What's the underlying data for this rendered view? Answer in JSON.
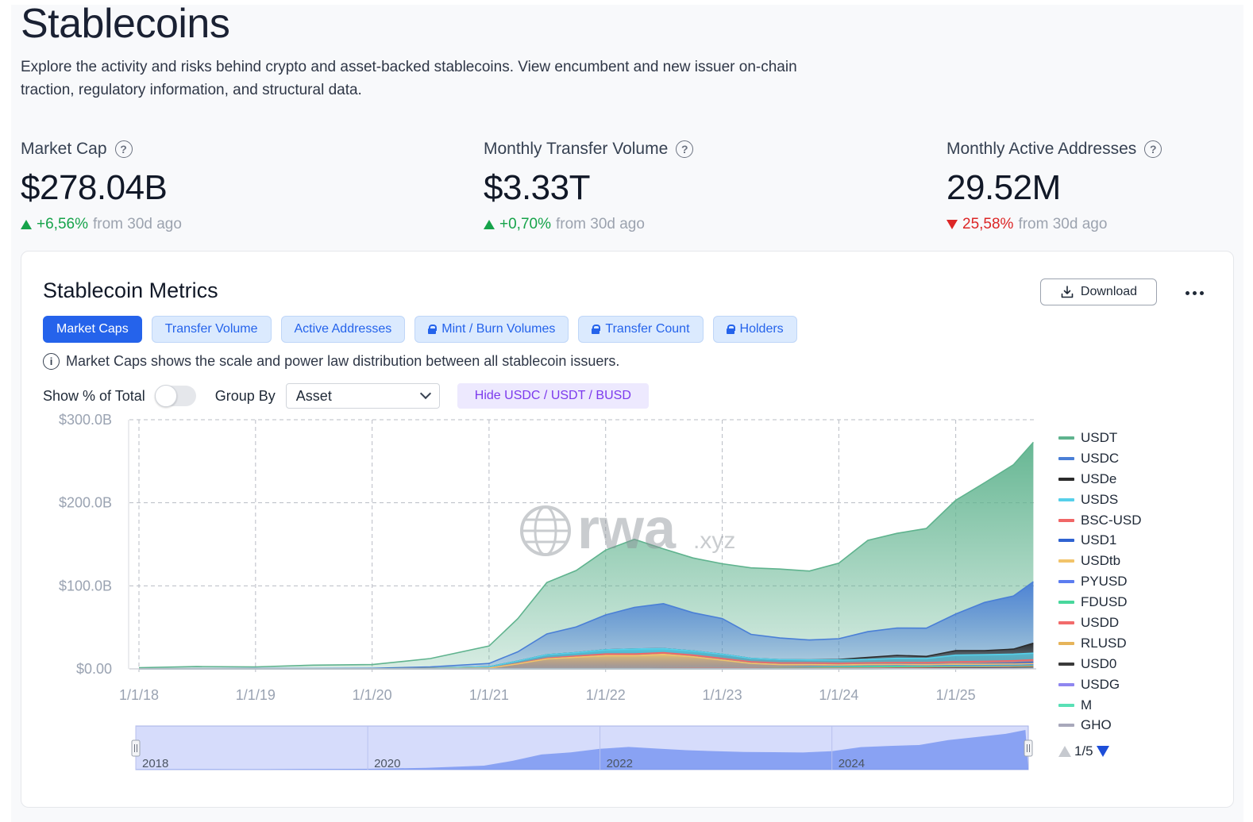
{
  "page": {
    "title": "Stablecoins",
    "description": "Explore the activity and risks behind crypto and asset-backed stablecoins. View encumbent and new issuer on-chain traction, regulatory information, and structural data."
  },
  "stats": [
    {
      "label": "Market Cap",
      "value": "$278.04B",
      "delta": "+6,56%",
      "direction": "up",
      "suffix": "from 30d ago"
    },
    {
      "label": "Monthly Transfer Volume",
      "value": "$3.33T",
      "delta": "+0,70%",
      "direction": "up",
      "suffix": "from 30d ago"
    },
    {
      "label": "Monthly Active Addresses",
      "value": "29.52M",
      "delta": "25,58%",
      "direction": "down",
      "suffix": "from 30d ago"
    }
  ],
  "metrics_card": {
    "title": "Stablecoin Metrics",
    "download_label": "Download",
    "tabs": [
      {
        "label": "Market Caps",
        "active": true,
        "locked": false
      },
      {
        "label": "Transfer Volume",
        "active": false,
        "locked": false
      },
      {
        "label": "Active Addresses",
        "active": false,
        "locked": false
      },
      {
        "label": "Mint / Burn Volumes",
        "active": false,
        "locked": true
      },
      {
        "label": "Transfer Count",
        "active": false,
        "locked": true
      },
      {
        "label": "Holders",
        "active": false,
        "locked": true
      }
    ],
    "info_text": "Market Caps shows the scale and power law distribution between all stablecoin issuers.",
    "show_pct_label": "Show % of Total",
    "show_pct_on": false,
    "group_by_label": "Group By",
    "group_by_value": "Asset",
    "hide_button_label": "Hide USDC / USDT / BUSD",
    "watermark": {
      "brand": "rwa",
      "suffix": ".xyz"
    },
    "pager": "1/5"
  },
  "colors": {
    "accent": "#2563eb",
    "positive": "#16a34a",
    "negative": "#dc2626"
  },
  "chart_data": {
    "type": "area",
    "stacked": true,
    "x_dates": [
      "2018-01-01",
      "2018-07-01",
      "2019-01-01",
      "2019-07-01",
      "2020-01-01",
      "2020-07-01",
      "2021-01-01",
      "2021-04-01",
      "2021-07-01",
      "2021-10-01",
      "2022-01-01",
      "2022-04-01",
      "2022-07-01",
      "2022-10-01",
      "2023-01-01",
      "2023-04-01",
      "2023-07-01",
      "2023-10-01",
      "2024-01-01",
      "2024-04-01",
      "2024-07-01",
      "2024-10-01",
      "2025-01-01",
      "2025-04-01",
      "2025-07-01",
      "2025-09-01"
    ],
    "x_ticks": [
      "1/1/18",
      "1/1/19",
      "1/1/20",
      "1/1/21",
      "1/1/22",
      "1/1/23",
      "1/1/24",
      "1/1/25"
    ],
    "y_ticks": [
      "$0.00",
      "$100.0B",
      "$200.0B",
      "$300.0B"
    ],
    "ylim": [
      0,
      300
    ],
    "y_unit": "B USD",
    "grid": true,
    "legend_position": "right",
    "series": [
      {
        "name": "USDT",
        "color": "#5fb38e",
        "values": [
          1.2,
          2.5,
          2,
          4,
          4.5,
          10,
          21,
          40,
          62,
          68,
          78,
          82,
          66,
          66,
          66,
          80,
          83,
          83,
          91,
          110,
          114,
          120,
          137,
          144,
          158,
          168
        ]
      },
      {
        "name": "USDC",
        "color": "#4a7fd6",
        "values": [
          0.2,
          0.3,
          0.4,
          0.5,
          0.6,
          1.5,
          4,
          11,
          25,
          31,
          42,
          50,
          54,
          46,
          43,
          29,
          26,
          24,
          25,
          31,
          33,
          34,
          44,
          58,
          64,
          74
        ]
      },
      {
        "name": "USDe",
        "color": "#2b2b2b",
        "values": [
          0,
          0,
          0,
          0,
          0,
          0,
          0,
          0,
          0,
          0,
          0,
          0,
          0,
          0,
          0,
          0,
          0,
          0,
          0.5,
          2.5,
          3.5,
          2.5,
          5.5,
          5,
          6,
          12
        ]
      },
      {
        "name": "USDS",
        "color": "#56d0ea",
        "values": [
          0,
          0,
          0,
          0,
          0.1,
          0.4,
          1.5,
          3,
          4,
          4,
          5,
          6,
          5,
          5,
          5,
          4,
          4,
          3.5,
          4,
          4,
          5,
          5,
          8,
          8,
          8,
          8
        ]
      },
      {
        "name": "BSC-USD",
        "color": "#f06767",
        "values": [
          0,
          0,
          0,
          0,
          0,
          0,
          0,
          0.5,
          1,
          1.5,
          2,
          2,
          2,
          2,
          2,
          2,
          2,
          2,
          2,
          2,
          2.5,
          2.5,
          3,
          3,
          3,
          3
        ]
      },
      {
        "name": "USD1",
        "color": "#2f63d1",
        "values": [
          0,
          0,
          0,
          0,
          0,
          0,
          0,
          0,
          0,
          0,
          0,
          0,
          0,
          0,
          0,
          0,
          0,
          0,
          0,
          0,
          0,
          0,
          0,
          0.5,
          1,
          1.5
        ]
      },
      {
        "name": "USDtb",
        "color": "#f2c46a",
        "values": [
          0,
          0,
          0,
          0,
          0,
          0.5,
          1,
          6,
          12,
          14,
          16,
          16,
          17,
          14,
          10,
          6,
          4,
          3,
          2,
          2,
          1.5,
          1.5,
          1.5,
          1.5,
          1.5,
          1.5
        ]
      },
      {
        "name": "PYUSD",
        "color": "#5c7df0",
        "values": [
          0,
          0,
          0,
          0,
          0,
          0,
          0,
          0,
          0,
          0,
          0,
          0,
          0,
          0,
          0,
          0,
          0,
          0.5,
          0.5,
          0.5,
          0.6,
          0.7,
          0.8,
          0.8,
          0.9,
          1
        ]
      },
      {
        "name": "FDUSD",
        "color": "#48d79c",
        "values": [
          0,
          0,
          0,
          0,
          0,
          0,
          0,
          0,
          0,
          0,
          0,
          0,
          0,
          0,
          0,
          0,
          0.5,
          1,
          1.5,
          2,
          2,
          1.5,
          1.5,
          1.2,
          1,
          1
        ]
      },
      {
        "name": "USDD",
        "color": "#f26b6b",
        "values": [
          0,
          0,
          0,
          0,
          0,
          0,
          0,
          0,
          0,
          0,
          0,
          0,
          0.5,
          0.6,
          0.6,
          0.6,
          0.7,
          0.7,
          0.7,
          0.7,
          0.7,
          0.7,
          0.7,
          0.7,
          0.7,
          0.7
        ]
      },
      {
        "name": "RLUSD",
        "color": "#e6b45a",
        "values": [
          0,
          0,
          0,
          0,
          0,
          0,
          0,
          0,
          0,
          0,
          0,
          0,
          0,
          0,
          0,
          0,
          0,
          0,
          0,
          0,
          0,
          0,
          0.1,
          0.2,
          0.4,
          0.6
        ]
      },
      {
        "name": "USD0",
        "color": "#3a3a3a",
        "values": [
          0,
          0,
          0,
          0,
          0,
          0,
          0,
          0,
          0,
          0,
          0,
          0,
          0,
          0,
          0,
          0,
          0,
          0,
          0,
          0,
          0.2,
          0.4,
          0.6,
          0.6,
          0.6,
          0.6
        ]
      },
      {
        "name": "USDG",
        "color": "#8f86f0",
        "values": [
          0,
          0,
          0,
          0,
          0,
          0,
          0,
          0,
          0,
          0,
          0,
          0,
          0,
          0,
          0,
          0,
          0,
          0,
          0,
          0,
          0,
          0,
          0.1,
          0.2,
          0.3,
          0.4
        ]
      },
      {
        "name": "M",
        "color": "#59e0b6",
        "values": [
          0,
          0,
          0,
          0,
          0,
          0,
          0,
          0,
          0,
          0,
          0,
          0,
          0,
          0,
          0,
          0,
          0,
          0,
          0,
          0,
          0,
          0,
          0,
          0.1,
          0.2,
          0.3
        ]
      },
      {
        "name": "GHO",
        "color": "#a8a8bb",
        "values": [
          0,
          0,
          0,
          0,
          0,
          0,
          0,
          0,
          0,
          0,
          0,
          0,
          0,
          0,
          0,
          0,
          0,
          0.1,
          0.1,
          0.1,
          0.2,
          0.2,
          0.2,
          0.2,
          0.2,
          0.3
        ]
      }
    ],
    "navigator": {
      "labels": [
        "2018",
        "2020",
        "2022",
        "2024"
      ]
    }
  }
}
